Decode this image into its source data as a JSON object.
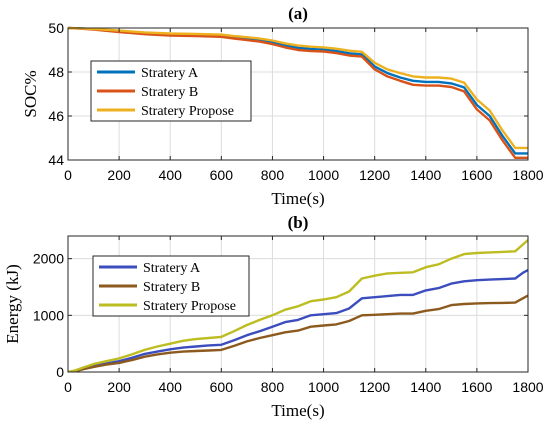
{
  "chart_data": [
    {
      "type": "line",
      "title": "(a)",
      "xlabel": "Time(s)",
      "ylabel": "SOC%",
      "xlim": [
        0,
        1800
      ],
      "ylim": [
        44,
        50
      ],
      "xticks": [
        0,
        200,
        400,
        600,
        800,
        1000,
        1200,
        1400,
        1600,
        1800
      ],
      "yticks": [
        44,
        46,
        48,
        50
      ],
      "grid": true,
      "legend_position": "left",
      "series": [
        {
          "name": "Stratery A",
          "color": "#0072BD",
          "x": [
            0,
            50,
            100,
            200,
            300,
            400,
            500,
            600,
            650,
            700,
            750,
            800,
            850,
            900,
            950,
            1000,
            1050,
            1100,
            1150,
            1200,
            1250,
            1300,
            1350,
            1400,
            1450,
            1500,
            1550,
            1600,
            1650,
            1700,
            1750,
            1800
          ],
          "y": [
            50.0,
            49.98,
            49.95,
            49.85,
            49.75,
            49.7,
            49.68,
            49.65,
            49.58,
            49.52,
            49.45,
            49.35,
            49.22,
            49.1,
            49.05,
            49.02,
            48.95,
            48.85,
            48.8,
            48.25,
            47.95,
            47.75,
            47.6,
            47.55,
            47.55,
            47.48,
            47.3,
            46.5,
            46.0,
            45.1,
            44.3,
            44.3
          ]
        },
        {
          "name": "Stratery B",
          "color": "#D95319",
          "x": [
            0,
            50,
            100,
            200,
            300,
            400,
            500,
            600,
            650,
            700,
            750,
            800,
            850,
            900,
            950,
            1000,
            1050,
            1100,
            1150,
            1200,
            1250,
            1300,
            1350,
            1400,
            1450,
            1500,
            1550,
            1600,
            1650,
            1700,
            1750,
            1800
          ],
          "y": [
            50.0,
            49.97,
            49.93,
            49.82,
            49.72,
            49.66,
            49.63,
            49.6,
            49.52,
            49.45,
            49.38,
            49.27,
            49.12,
            49.0,
            48.95,
            48.93,
            48.86,
            48.75,
            48.7,
            48.12,
            47.8,
            47.6,
            47.42,
            47.38,
            47.38,
            47.32,
            47.12,
            46.3,
            45.8,
            44.9,
            44.1,
            44.1
          ]
        },
        {
          "name": "Stratery Propose",
          "color": "#EDB120",
          "x": [
            0,
            50,
            100,
            200,
            300,
            400,
            500,
            600,
            650,
            700,
            750,
            800,
            850,
            900,
            950,
            1000,
            1050,
            1100,
            1150,
            1200,
            1250,
            1300,
            1350,
            1400,
            1450,
            1500,
            1550,
            1600,
            1650,
            1700,
            1750,
            1800
          ],
          "y": [
            50.0,
            49.98,
            49.96,
            49.88,
            49.8,
            49.75,
            49.73,
            49.7,
            49.63,
            49.58,
            49.52,
            49.43,
            49.3,
            49.2,
            49.15,
            49.12,
            49.06,
            48.97,
            48.92,
            48.42,
            48.12,
            47.95,
            47.8,
            47.75,
            47.75,
            47.7,
            47.52,
            46.75,
            46.25,
            45.35,
            44.55,
            44.55
          ]
        }
      ]
    },
    {
      "type": "line",
      "title": "(b)",
      "xlabel": "Time(s)",
      "ylabel": "Energy (kJ)",
      "xlim": [
        0,
        1800
      ],
      "ylim": [
        0,
        2400
      ],
      "xticks": [
        0,
        200,
        400,
        600,
        800,
        1000,
        1200,
        1400,
        1600,
        1800
      ],
      "yticks": [
        0,
        1000,
        2000
      ],
      "grid": true,
      "legend_position": "top-left",
      "series": [
        {
          "name": "Stratery A",
          "color": "#3C4DBE",
          "x": [
            0,
            30,
            60,
            100,
            150,
            200,
            250,
            300,
            350,
            400,
            450,
            500,
            550,
            600,
            650,
            700,
            750,
            800,
            850,
            900,
            950,
            1000,
            1050,
            1100,
            1150,
            1200,
            1250,
            1300,
            1350,
            1400,
            1450,
            1500,
            1550,
            1600,
            1650,
            1700,
            1750,
            1780,
            1800
          ],
          "y": [
            0,
            20,
            60,
            110,
            150,
            190,
            250,
            320,
            360,
            400,
            430,
            450,
            470,
            480,
            560,
            650,
            720,
            800,
            880,
            920,
            1000,
            1020,
            1040,
            1120,
            1300,
            1320,
            1340,
            1360,
            1360,
            1440,
            1480,
            1560,
            1600,
            1620,
            1630,
            1640,
            1650,
            1750,
            1800
          ]
        },
        {
          "name": "Stratery B",
          "color": "#8C5A1E",
          "x": [
            0,
            30,
            60,
            100,
            150,
            200,
            250,
            300,
            350,
            400,
            450,
            500,
            550,
            600,
            650,
            700,
            750,
            800,
            850,
            900,
            950,
            1000,
            1050,
            1100,
            1150,
            1200,
            1250,
            1300,
            1350,
            1400,
            1450,
            1500,
            1550,
            1600,
            1650,
            1700,
            1750,
            1780,
            1800
          ],
          "y": [
            0,
            15,
            50,
            90,
            130,
            160,
            210,
            270,
            310,
            340,
            360,
            370,
            380,
            390,
            460,
            540,
            600,
            650,
            700,
            730,
            800,
            820,
            840,
            900,
            1000,
            1010,
            1020,
            1030,
            1030,
            1080,
            1110,
            1180,
            1200,
            1210,
            1215,
            1220,
            1225,
            1300,
            1350
          ]
        },
        {
          "name": "Stratery Propose",
          "color": "#BDBD22",
          "x": [
            0,
            30,
            60,
            100,
            150,
            200,
            250,
            300,
            350,
            400,
            450,
            500,
            550,
            600,
            650,
            700,
            750,
            800,
            850,
            900,
            950,
            1000,
            1050,
            1100,
            1150,
            1200,
            1250,
            1300,
            1350,
            1400,
            1450,
            1500,
            1550,
            1600,
            1650,
            1700,
            1750,
            1780,
            1800
          ],
          "y": [
            0,
            30,
            80,
            140,
            190,
            240,
            310,
            390,
            450,
            500,
            550,
            580,
            600,
            620,
            720,
            830,
            920,
            1000,
            1100,
            1160,
            1250,
            1280,
            1320,
            1420,
            1650,
            1700,
            1740,
            1750,
            1760,
            1850,
            1900,
            2000,
            2080,
            2100,
            2110,
            2120,
            2130,
            2250,
            2330
          ]
        }
      ]
    }
  ]
}
